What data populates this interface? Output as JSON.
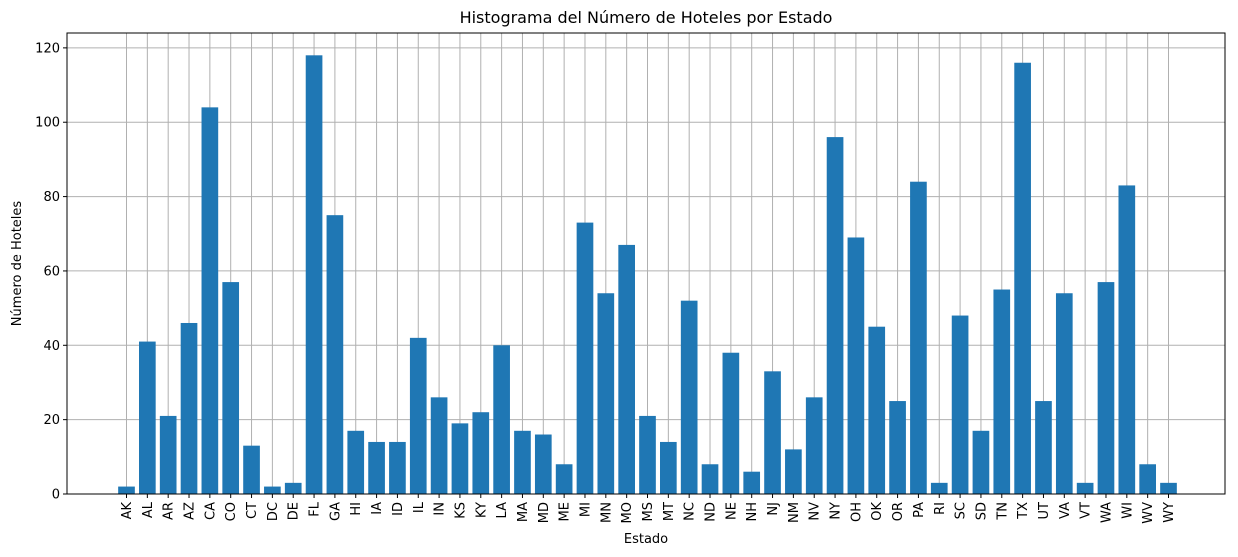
{
  "chart_data": {
    "type": "bar",
    "title": "Histograma del Número de Hoteles por Estado",
    "xlabel": "Estado",
    "ylabel": "Número de Hoteles",
    "ylim": [
      0,
      124
    ],
    "yticks": [
      0,
      20,
      40,
      60,
      80,
      100,
      120
    ],
    "grid": true,
    "bar_color": "#1f77b4",
    "categories": [
      "AK",
      "AL",
      "AR",
      "AZ",
      "CA",
      "CO",
      "CT",
      "DC",
      "DE",
      "FL",
      "GA",
      "HI",
      "IA",
      "ID",
      "IL",
      "IN",
      "KS",
      "KY",
      "LA",
      "MA",
      "MD",
      "ME",
      "MI",
      "MN",
      "MO",
      "MS",
      "MT",
      "NC",
      "ND",
      "NE",
      "NH",
      "NJ",
      "NM",
      "NV",
      "NY",
      "OH",
      "OK",
      "OR",
      "PA",
      "RI",
      "SC",
      "SD",
      "TN",
      "TX",
      "UT",
      "VA",
      "VT",
      "WA",
      "WI",
      "WV",
      "WY"
    ],
    "values": [
      2,
      41,
      21,
      46,
      104,
      57,
      13,
      2,
      3,
      118,
      75,
      17,
      14,
      14,
      42,
      26,
      19,
      22,
      40,
      17,
      16,
      8,
      73,
      54,
      67,
      21,
      14,
      52,
      8,
      38,
      6,
      33,
      12,
      26,
      96,
      69,
      45,
      25,
      84,
      3,
      48,
      17,
      55,
      116,
      25,
      54,
      3,
      57,
      83,
      8,
      3
    ]
  }
}
